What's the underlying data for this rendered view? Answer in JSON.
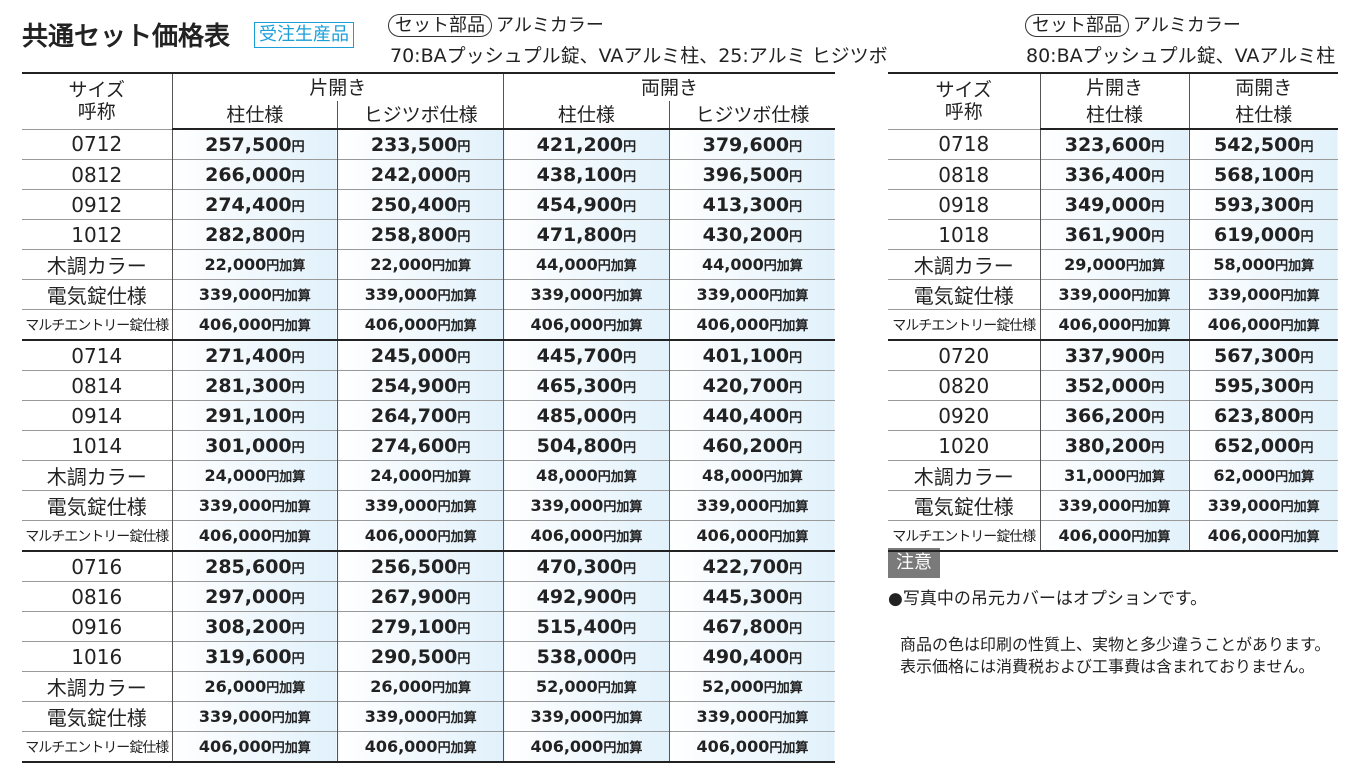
{
  "title": "共通セット価格表",
  "badge": "受注生産品",
  "unit": "円",
  "unit_add": "円加算",
  "tables": [
    {
      "tag": "セット部品",
      "color": "アルミカラー",
      "desc": "70:BAプッシュプル錠、VAアルミ柱、25:アルミ ヒジツボ",
      "size_label": "サイズ",
      "name_label": "呼称",
      "groups": [
        "片開き",
        "両開き"
      ],
      "subs": [
        "柱仕様",
        "ヒジツボ仕様",
        "柱仕様",
        "ヒジツボ仕様"
      ],
      "blocks": [
        {
          "rows": [
            {
              "label": "0712",
              "prices": [
                "257,500",
                "233,500",
                "421,200",
                "379,600"
              ]
            },
            {
              "label": "0812",
              "prices": [
                "266,000",
                "242,000",
                "438,100",
                "396,500"
              ]
            },
            {
              "label": "0912",
              "prices": [
                "274,400",
                "250,400",
                "454,900",
                "413,300"
              ]
            },
            {
              "label": "1012",
              "prices": [
                "282,800",
                "258,800",
                "471,800",
                "430,200"
              ]
            }
          ],
          "options": [
            {
              "label": "木調カラー",
              "prices": [
                "22,000",
                "22,000",
                "44,000",
                "44,000"
              ]
            },
            {
              "label": "電気錠仕様",
              "prices": [
                "339,000",
                "339,000",
                "339,000",
                "339,000"
              ]
            },
            {
              "label": "マルチエントリー錠仕様",
              "prices": [
                "406,000",
                "406,000",
                "406,000",
                "406,000"
              ]
            }
          ]
        },
        {
          "rows": [
            {
              "label": "0714",
              "prices": [
                "271,400",
                "245,000",
                "445,700",
                "401,100"
              ]
            },
            {
              "label": "0814",
              "prices": [
                "281,300",
                "254,900",
                "465,300",
                "420,700"
              ]
            },
            {
              "label": "0914",
              "prices": [
                "291,100",
                "264,700",
                "485,000",
                "440,400"
              ]
            },
            {
              "label": "1014",
              "prices": [
                "301,000",
                "274,600",
                "504,800",
                "460,200"
              ]
            }
          ],
          "options": [
            {
              "label": "木調カラー",
              "prices": [
                "24,000",
                "24,000",
                "48,000",
                "48,000"
              ]
            },
            {
              "label": "電気錠仕様",
              "prices": [
                "339,000",
                "339,000",
                "339,000",
                "339,000"
              ]
            },
            {
              "label": "マルチエントリー錠仕様",
              "prices": [
                "406,000",
                "406,000",
                "406,000",
                "406,000"
              ]
            }
          ]
        },
        {
          "rows": [
            {
              "label": "0716",
              "prices": [
                "285,600",
                "256,500",
                "470,300",
                "422,700"
              ]
            },
            {
              "label": "0816",
              "prices": [
                "297,000",
                "267,900",
                "492,900",
                "445,300"
              ]
            },
            {
              "label": "0916",
              "prices": [
                "308,200",
                "279,100",
                "515,400",
                "467,800"
              ]
            },
            {
              "label": "1016",
              "prices": [
                "319,600",
                "290,500",
                "538,000",
                "490,400"
              ]
            }
          ],
          "options": [
            {
              "label": "木調カラー",
              "prices": [
                "26,000",
                "26,000",
                "52,000",
                "52,000"
              ]
            },
            {
              "label": "電気錠仕様",
              "prices": [
                "339,000",
                "339,000",
                "339,000",
                "339,000"
              ]
            },
            {
              "label": "マルチエントリー錠仕様",
              "prices": [
                "406,000",
                "406,000",
                "406,000",
                "406,000"
              ]
            }
          ]
        }
      ]
    },
    {
      "tag": "セット部品",
      "color": "アルミカラー",
      "desc": "80:BAプッシュプル錠、VAアルミ柱",
      "size_label": "サイズ",
      "name_label": "呼称",
      "groups": [
        "片開き",
        "両開き"
      ],
      "subs": [
        "柱仕様",
        "柱仕様"
      ],
      "blocks": [
        {
          "rows": [
            {
              "label": "0718",
              "prices": [
                "323,600",
                "542,500"
              ]
            },
            {
              "label": "0818",
              "prices": [
                "336,400",
                "568,100"
              ]
            },
            {
              "label": "0918",
              "prices": [
                "349,000",
                "593,300"
              ]
            },
            {
              "label": "1018",
              "prices": [
                "361,900",
                "619,000"
              ]
            }
          ],
          "options": [
            {
              "label": "木調カラー",
              "prices": [
                "29,000",
                "58,000"
              ]
            },
            {
              "label": "電気錠仕様",
              "prices": [
                "339,000",
                "339,000"
              ]
            },
            {
              "label": "マルチエントリー錠仕様",
              "prices": [
                "406,000",
                "406,000"
              ]
            }
          ]
        },
        {
          "rows": [
            {
              "label": "0720",
              "prices": [
                "337,900",
                "567,300"
              ]
            },
            {
              "label": "0820",
              "prices": [
                "352,000",
                "595,300"
              ]
            },
            {
              "label": "0920",
              "prices": [
                "366,200",
                "623,800"
              ]
            },
            {
              "label": "1020",
              "prices": [
                "380,200",
                "652,000"
              ]
            }
          ],
          "options": [
            {
              "label": "木調カラー",
              "prices": [
                "31,000",
                "62,000"
              ]
            },
            {
              "label": "電気錠仕様",
              "prices": [
                "339,000",
                "339,000"
              ]
            },
            {
              "label": "マルチエントリー錠仕様",
              "prices": [
                "406,000",
                "406,000"
              ]
            }
          ]
        }
      ]
    }
  ],
  "note": {
    "label": "注意",
    "items": [
      "●写真中の吊元カバーはオプションです。"
    ],
    "remarks": [
      "商品の色は印刷の性質上、実物と多少違うことがあります。",
      "表示価格には消費税および工事費は含まれておりません。"
    ]
  }
}
